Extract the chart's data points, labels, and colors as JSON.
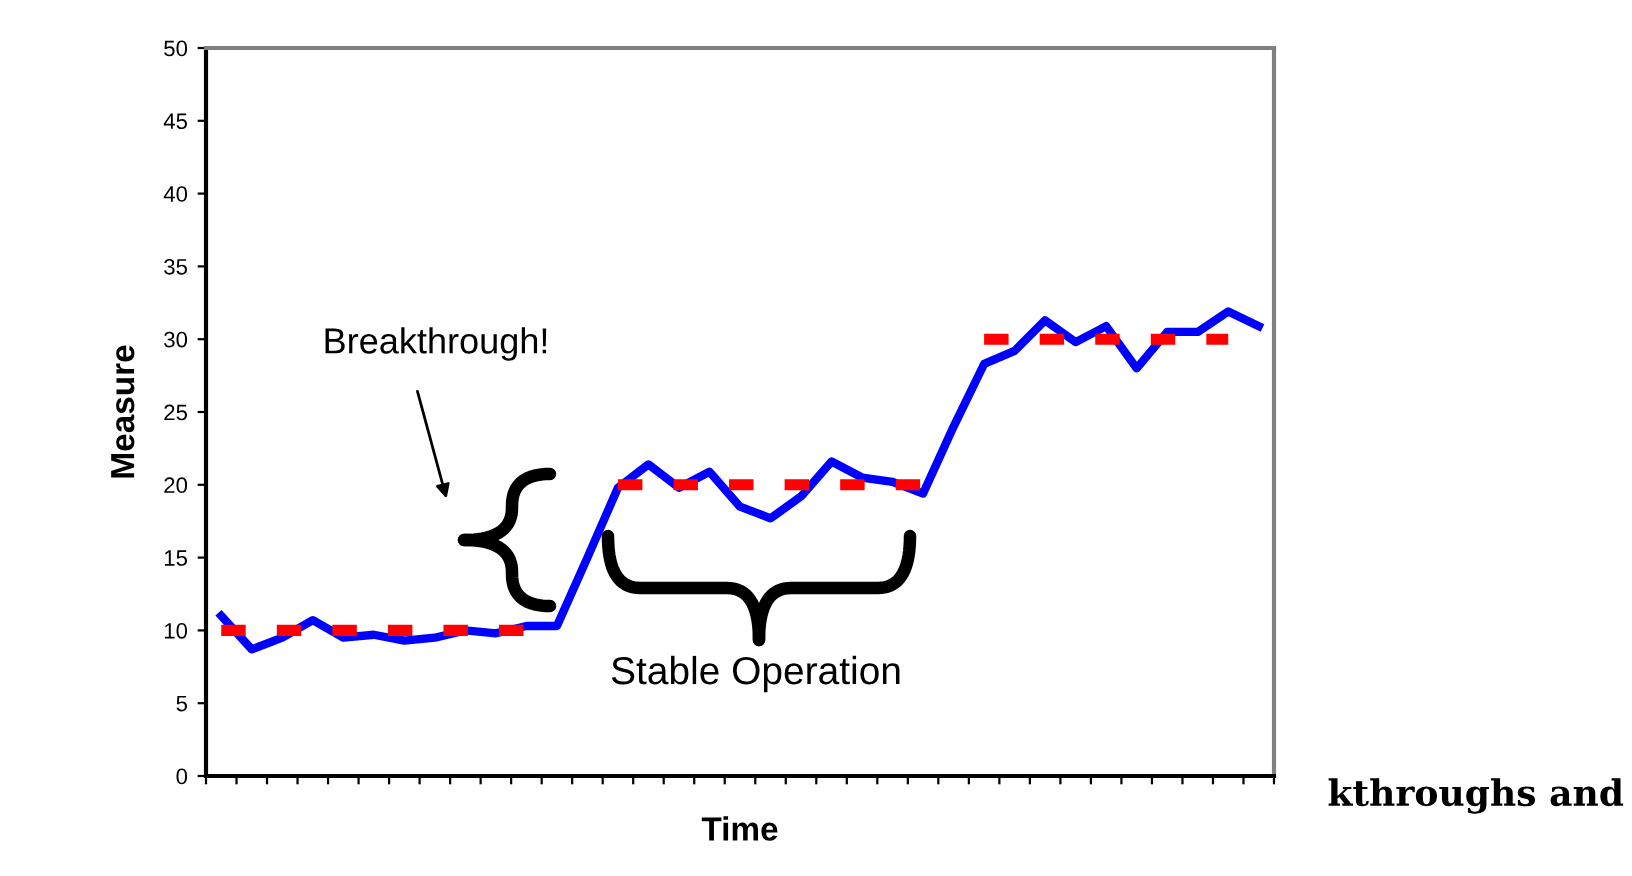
{
  "chart_data": {
    "type": "line",
    "xlabel": "Time",
    "ylabel": "Measure",
    "categories": [
      null,
      null,
      null,
      null,
      null,
      null,
      null,
      null,
      null,
      null,
      null,
      null,
      null,
      null,
      null,
      null,
      null,
      null,
      null,
      null,
      null,
      null,
      null,
      null,
      null,
      null,
      null,
      null,
      null,
      null,
      null,
      null,
      null,
      null,
      null
    ],
    "series": [
      {
        "color": "#0000ff",
        "line_style": "solid",
        "values": [
          11.0,
          8.7,
          9.5,
          10.7,
          9.5,
          9.7,
          9.3,
          9.5,
          10.0,
          9.8,
          10.3,
          10.3,
          15.0,
          19.8,
          21.4,
          19.8,
          20.9,
          18.5,
          17.7,
          19.2,
          21.6,
          20.5,
          20.2,
          19.4,
          24.0,
          28.3,
          29.2,
          31.3,
          29.8,
          30.9,
          28.0,
          30.5,
          30.5,
          31.9,
          30.9
        ]
      },
      {
        "color": "#ff0000",
        "line_style": "dashed",
        "values": [
          10,
          10,
          10,
          10,
          10,
          10,
          10,
          10,
          10,
          10,
          10,
          null,
          null,
          20,
          20,
          20,
          20,
          20,
          20,
          20,
          20,
          20,
          20,
          20,
          null,
          30,
          30,
          30,
          30,
          30,
          30,
          30,
          30,
          30,
          null
        ]
      }
    ],
    "ylim": [
      0,
      50
    ],
    "yticks": [
      0,
      5,
      10,
      15,
      20,
      25,
      30,
      35,
      40,
      45,
      50
    ],
    "tick_labels": "y",
    "grid": false,
    "marker": "none",
    "annotations": [
      "Breakthrough!",
      "Stable Operation",
      "kthroughs and"
    ]
  }
}
